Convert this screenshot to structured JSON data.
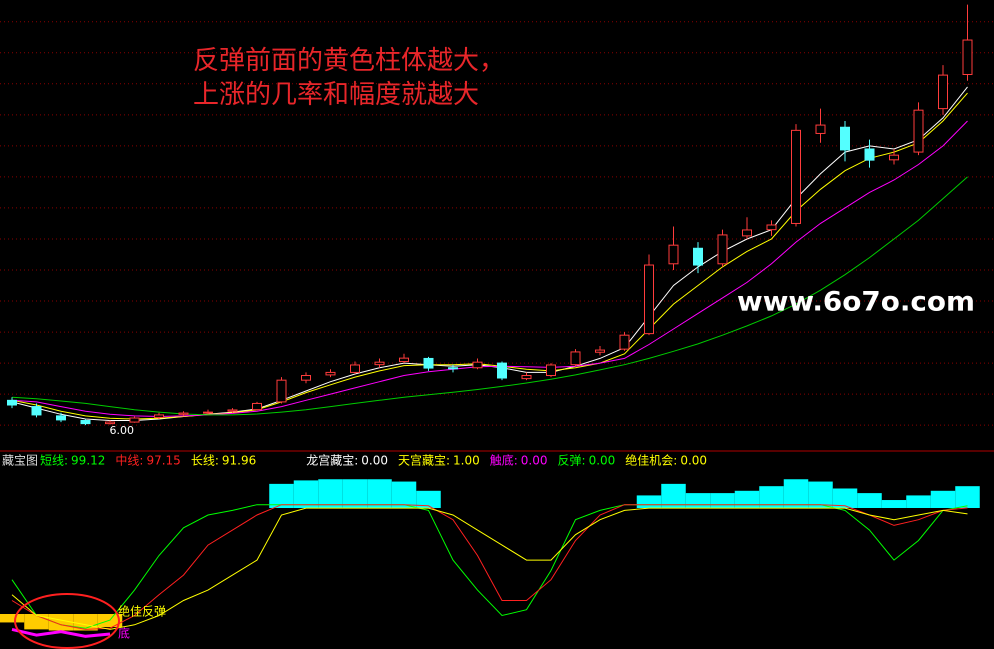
{
  "chart_data": [
    {
      "type": "candlestick",
      "annotation": [
        "反弹前面的黄色柱体越大，",
        "上涨的几率和幅度就越大"
      ],
      "annotation_color": "#e8262a",
      "watermark": "www.6o7o.com",
      "ylim": [
        5.2,
        19.7
      ],
      "yticks": [
        6,
        7,
        8,
        9,
        10,
        11,
        12,
        13,
        14,
        15,
        16,
        17,
        18,
        19
      ],
      "grid": true,
      "up_color": "#ff3c3c",
      "down_color": "#54ffff",
      "open": [
        6.8,
        6.6,
        6.3,
        6.15,
        6.05,
        6.1,
        6.25,
        6.35,
        6.4,
        6.45,
        6.5,
        6.75,
        7.45,
        7.62,
        7.7,
        7.95,
        8.05,
        8.15,
        7.85,
        7.85,
        8.0,
        7.5,
        7.6,
        7.95,
        8.35,
        8.45,
        8.95,
        11.2,
        11.7,
        11.2,
        12.1,
        12.3,
        12.5,
        15.4,
        15.6,
        14.9,
        14.55,
        14.8,
        16.2,
        17.3
      ],
      "high": [
        6.9,
        6.7,
        6.4,
        6.2,
        6.15,
        6.28,
        6.4,
        6.45,
        6.5,
        6.55,
        6.75,
        7.55,
        7.7,
        7.8,
        8.05,
        8.15,
        8.3,
        8.2,
        7.95,
        8.15,
        8.05,
        7.7,
        8.0,
        8.45,
        8.55,
        9.0,
        11.5,
        12.4,
        11.9,
        12.3,
        12.7,
        12.6,
        15.7,
        16.2,
        15.8,
        15.2,
        14.9,
        16.4,
        17.6,
        19.55
      ],
      "low": [
        6.55,
        6.25,
        6.1,
        6.0,
        6.02,
        6.08,
        6.2,
        6.3,
        6.35,
        6.4,
        6.48,
        6.7,
        7.35,
        7.55,
        7.65,
        7.85,
        8.0,
        7.75,
        7.7,
        7.8,
        7.45,
        7.45,
        7.55,
        7.9,
        8.25,
        8.4,
        8.9,
        11.0,
        10.9,
        11.1,
        12.0,
        12.1,
        12.4,
        15.1,
        14.5,
        14.3,
        14.4,
        14.7,
        16.0,
        17.1
      ],
      "close": [
        6.65,
        6.33,
        6.17,
        6.05,
        6.1,
        6.23,
        6.33,
        6.39,
        6.42,
        6.49,
        6.7,
        7.45,
        7.6,
        7.7,
        7.94,
        8.03,
        8.16,
        7.84,
        7.84,
        8.03,
        7.52,
        7.6,
        7.94,
        8.36,
        8.42,
        8.9,
        11.16,
        11.8,
        11.16,
        12.13,
        12.29,
        12.45,
        15.5,
        15.67,
        14.87,
        14.54,
        14.7,
        16.15,
        17.28,
        18.41
      ],
      "low_label": {
        "value": 6,
        "label": "6.00"
      },
      "series": [
        {
          "color": "#ffffff",
          "values": [
            6.75,
            6.55,
            6.35,
            6.2,
            6.15,
            6.15,
            6.2,
            6.28,
            6.35,
            6.42,
            6.52,
            6.8,
            7.1,
            7.4,
            7.65,
            7.85,
            8.0,
            7.95,
            7.9,
            7.95,
            7.85,
            7.7,
            7.7,
            7.9,
            8.15,
            8.5,
            9.5,
            10.5,
            11.1,
            11.6,
            12.0,
            12.3,
            13.3,
            14.1,
            14.8,
            15.0,
            14.9,
            15.2,
            15.9,
            16.9
          ]
        },
        {
          "color": "#ffff00",
          "values": [
            6.8,
            6.65,
            6.45,
            6.3,
            6.22,
            6.2,
            6.22,
            6.28,
            6.34,
            6.4,
            6.5,
            6.75,
            7.05,
            7.3,
            7.55,
            7.75,
            7.92,
            7.95,
            7.95,
            7.98,
            7.9,
            7.8,
            7.75,
            7.85,
            8.0,
            8.3,
            9.1,
            9.9,
            10.5,
            11.1,
            11.6,
            12.0,
            12.9,
            13.6,
            14.2,
            14.6,
            14.8,
            15.1,
            15.8,
            16.7
          ]
        },
        {
          "color": "#ff00ff",
          "values": [
            6.8,
            6.75,
            6.6,
            6.45,
            6.35,
            6.3,
            6.28,
            6.3,
            6.33,
            6.38,
            6.45,
            6.6,
            6.8,
            7.0,
            7.2,
            7.4,
            7.6,
            7.72,
            7.8,
            7.88,
            7.9,
            7.88,
            7.86,
            7.9,
            8.0,
            8.15,
            8.6,
            9.1,
            9.6,
            10.1,
            10.6,
            11.2,
            11.9,
            12.5,
            13.0,
            13.5,
            13.9,
            14.4,
            15.0,
            15.8
          ]
        },
        {
          "color": "#00cc00",
          "values": [
            6.9,
            6.85,
            6.78,
            6.7,
            6.6,
            6.5,
            6.42,
            6.36,
            6.33,
            6.33,
            6.36,
            6.42,
            6.5,
            6.6,
            6.7,
            6.8,
            6.9,
            6.98,
            7.06,
            7.15,
            7.25,
            7.36,
            7.48,
            7.62,
            7.78,
            7.95,
            8.15,
            8.38,
            8.62,
            8.9,
            9.2,
            9.52,
            9.9,
            10.35,
            10.85,
            11.4,
            12.0,
            12.6,
            13.3,
            14.0
          ]
        }
      ]
    },
    {
      "type": "line",
      "title": "藏宝图",
      "ylim": [
        -25,
        143
      ],
      "series": [
        {
          "name": "短线:",
          "current": 99.12,
          "color": "#00ff00",
          "values": [
            35,
            4,
            -4,
            -7,
            0,
            26,
            56,
            80,
            91,
            95,
            100,
            100,
            100,
            100,
            100,
            100,
            100,
            95,
            52,
            26,
            4,
            9,
            43,
            87,
            95,
            100,
            100,
            100,
            100,
            100,
            100,
            100,
            100,
            100,
            95,
            78,
            52,
            69,
            95,
            99.12
          ]
        },
        {
          "name": "中线:",
          "current": 97.15,
          "color": "#ff2020",
          "values": [
            17,
            4,
            -4,
            -8,
            -7,
            4,
            22,
            39,
            65,
            78,
            91,
            100,
            100,
            100,
            100,
            100,
            100,
            99,
            87,
            56,
            17,
            17,
            35,
            69,
            91,
            100,
            100,
            100,
            100,
            100,
            100,
            100,
            100,
            100,
            99,
            91,
            82,
            87,
            95,
            97.15
          ]
        },
        {
          "name": "长线:",
          "current": 91.96,
          "color": "#ffff00",
          "values": [
            22,
            4,
            0,
            -4,
            -8,
            -4,
            4,
            17,
            26,
            39,
            52,
            91,
            97,
            97,
            97,
            97,
            97,
            97,
            91,
            78,
            65,
            52,
            52,
            74,
            87,
            95,
            97,
            97,
            97,
            97,
            97,
            97,
            97,
            97,
            97,
            91,
            87,
            91,
            95,
            91.96
          ]
        }
      ],
      "readouts": [
        {
          "name": "龙宫藏宝:",
          "value": {
            "value": 0,
            "label": "0.00"
          },
          "color": "#ffffff"
        },
        {
          "name": "天宫藏宝:",
          "value": {
            "value": 1,
            "label": "1.00"
          },
          "color": "#ffff00"
        },
        {
          "name": "触底:",
          "value": {
            "value": 0,
            "label": "0.00"
          },
          "color": "#ff00ff"
        },
        {
          "name": "反弹:",
          "value": {
            "value": 0,
            "label": "0.00"
          },
          "color": "#00ff00"
        },
        {
          "name": "绝佳机会:",
          "value": {
            "value": 0,
            "label": "0.00"
          },
          "color": "#ffff00"
        }
      ],
      "bars": [
        {
          "color": "#00ffff",
          "values": [
            null,
            null,
            null,
            null,
            null,
            null,
            null,
            null,
            null,
            null,
            null,
            118,
            121,
            122,
            122,
            122,
            120,
            112,
            null,
            null,
            null,
            null,
            null,
            null,
            null,
            null,
            108,
            118,
            110,
            110,
            112,
            116,
            122,
            120,
            114,
            110,
            104,
            108,
            112,
            116
          ]
        },
        {
          "color": "#ffcc00",
          "values": [
            -2,
            -8,
            -9,
            -9,
            -6,
            null,
            null,
            null,
            null,
            null,
            null,
            null,
            null,
            null,
            null,
            null,
            null,
            null,
            null,
            null,
            null,
            null,
            null,
            null,
            null,
            null,
            null,
            null,
            null,
            null,
            null,
            null,
            null,
            null,
            null,
            null,
            null,
            null,
            null,
            null
          ]
        }
      ],
      "extra_line": {
        "color": "#ff00ff",
        "values": [
          -8,
          -13,
          -10,
          -14,
          -12,
          null,
          null,
          null,
          null,
          null,
          null,
          null,
          null,
          null,
          null,
          null,
          null,
          null,
          null,
          null,
          null,
          null,
          null,
          null,
          null,
          null,
          null,
          null,
          null,
          null,
          null,
          null,
          null,
          null,
          null,
          null,
          null,
          null,
          null,
          null
        ]
      },
      "annotations": [
        {
          "text": "绝佳",
          "color": "#ffff00"
        },
        {
          "text": "反弹",
          "color": "#ffff00"
        },
        {
          "text": "底",
          "color": "#ff00ff"
        }
      ]
    }
  ]
}
